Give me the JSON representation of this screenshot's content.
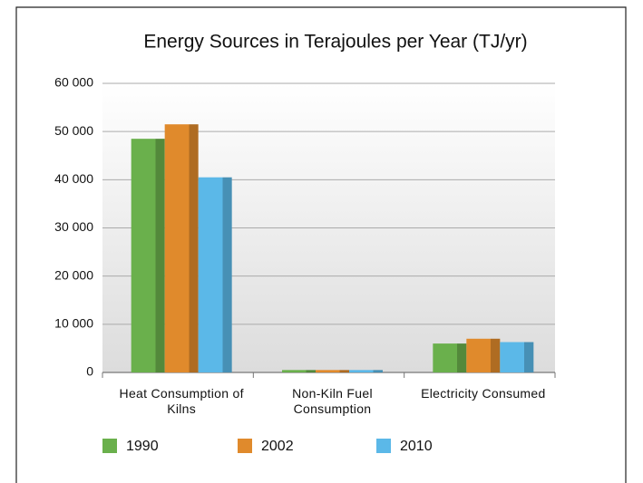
{
  "chart_data": {
    "type": "bar",
    "title": "Energy Sources in Terajoules per Year (TJ/yr)",
    "categories": [
      "Heat Consumption of Kilns",
      "Non-Kiln Fuel Consumption",
      "Electricity Consumed"
    ],
    "series": [
      {
        "name": "1990",
        "color": "#6ab04c",
        "values": [
          48500,
          500,
          6000
        ]
      },
      {
        "name": "2002",
        "color": "#e08a2c",
        "values": [
          51500,
          500,
          7000
        ]
      },
      {
        "name": "2010",
        "color": "#5bb8e8",
        "values": [
          40500,
          500,
          6300
        ]
      }
    ],
    "ylim": [
      0,
      60000
    ],
    "yticks": [
      0,
      {
        "value": 10000,
        "label": "10 000"
      },
      {
        "value": 20000,
        "label": "20 000"
      },
      {
        "value": 30000,
        "label": "30 000"
      },
      {
        "value": 40000,
        "label": "40 000"
      },
      {
        "value": 50000,
        "label": "50 000"
      },
      {
        "value": 60000,
        "label": "60 000"
      }
    ],
    "grid": true,
    "legend": "bottom"
  }
}
